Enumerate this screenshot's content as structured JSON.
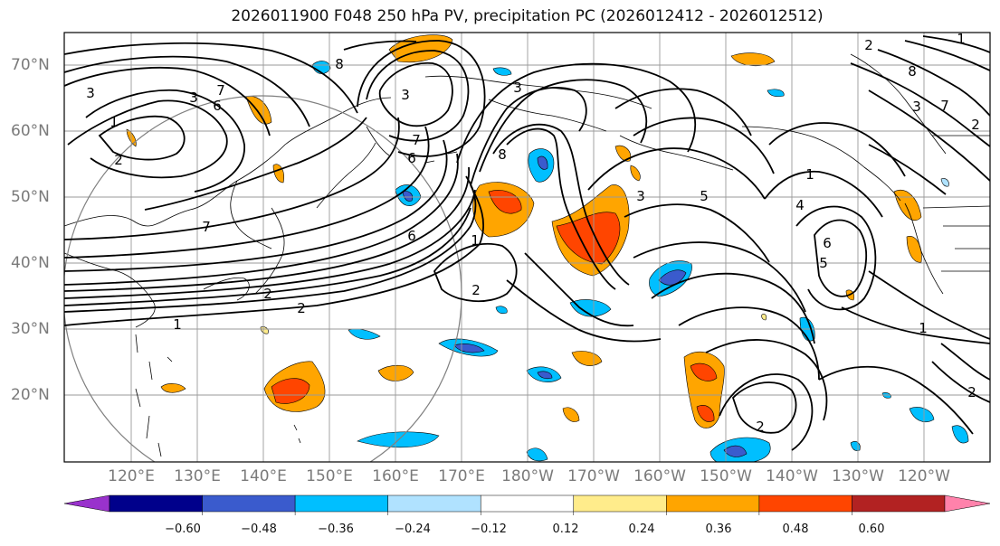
{
  "title": "2026011900 F048 250 hPa PV, precipitation PC (2026012412 - 2026012512)",
  "lat_labels": [
    "70°N",
    "60°N",
    "50°N",
    "40°N",
    "30°N",
    "20°N"
  ],
  "lon_labels": [
    "120°E",
    "130°E",
    "140°E",
    "150°E",
    "160°E",
    "170°E",
    "180°W",
    "170°W",
    "160°W",
    "150°W",
    "140°W",
    "130°W",
    "120°W"
  ],
  "colorbar": {
    "colors": [
      "#9932cc",
      "#00008b",
      "#3a5bcd",
      "#00bfff",
      "#b0e2ff",
      "#ffffff",
      "#ffec8b",
      "#ffa500",
      "#ff4500",
      "#b22222",
      "#ff82ab"
    ],
    "tick_labels": [
      "−0.60",
      "−0.48",
      "−0.36",
      "−0.24",
      "−0.12",
      "0.12",
      "0.24",
      "0.36",
      "0.48",
      "0.60"
    ]
  },
  "contour_labels": [
    "3",
    "3",
    "1",
    "2",
    "6",
    "7",
    "8",
    "7",
    "3",
    "2",
    "2",
    "6",
    "7",
    "6",
    "8",
    "3",
    "1",
    "2",
    "3",
    "1",
    "5",
    "4",
    "6",
    "5",
    "1",
    "2",
    "2",
    "3",
    "8",
    "7",
    "2",
    "1",
    "1",
    "2"
  ]
}
